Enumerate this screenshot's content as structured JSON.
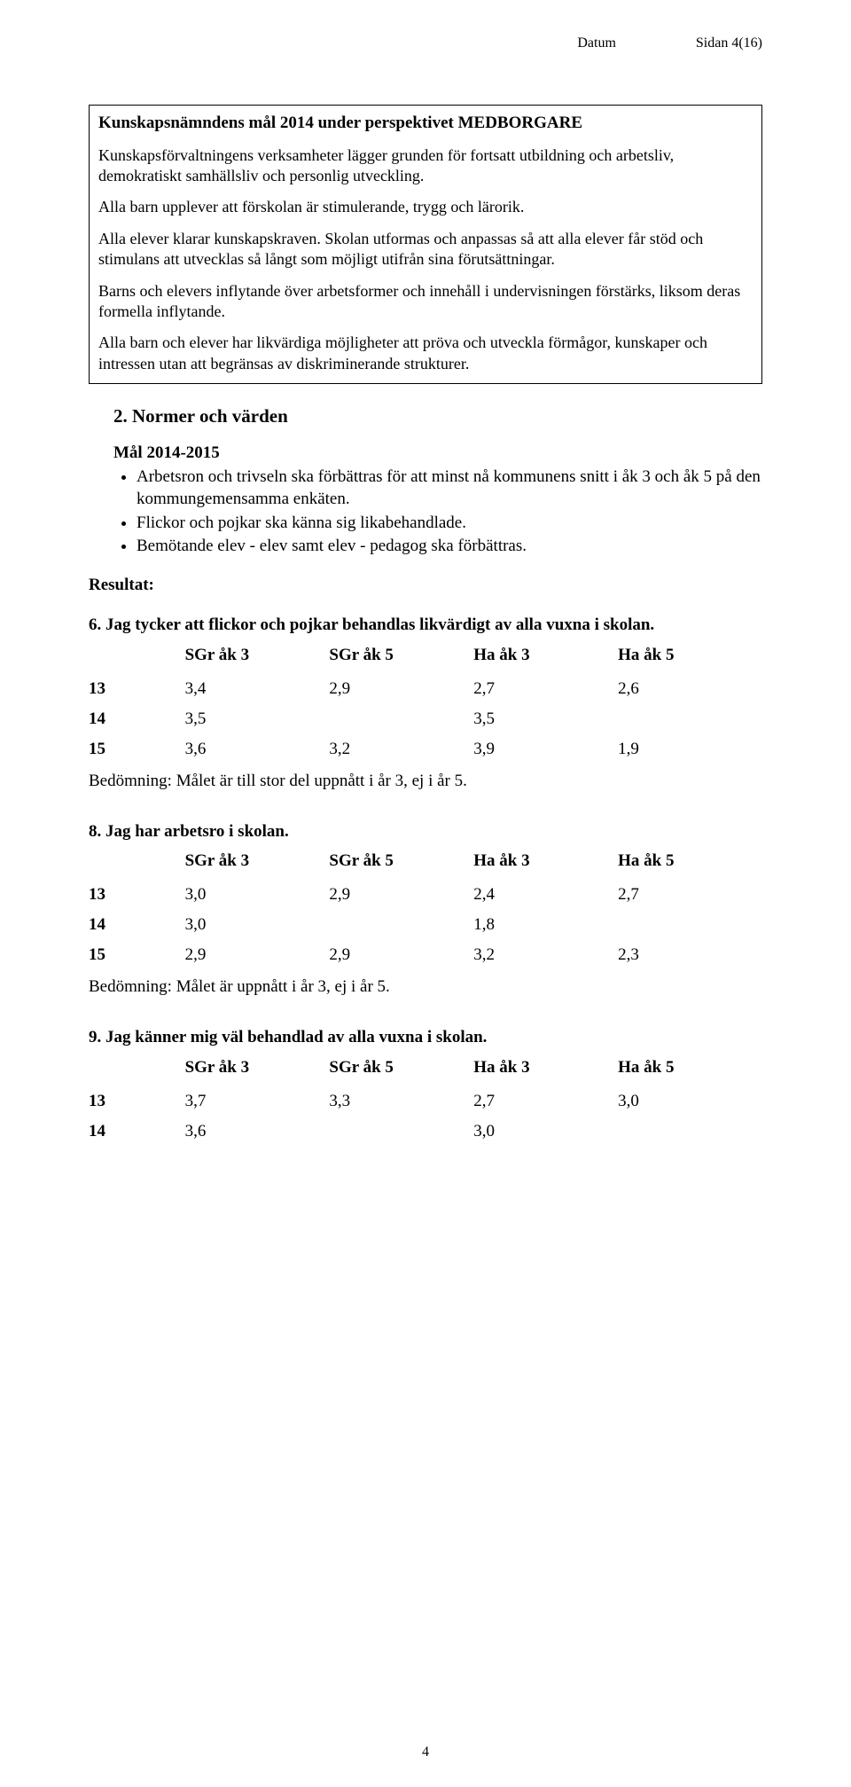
{
  "header": {
    "datum_label": "Datum",
    "page_label": "Sidan 4(16)"
  },
  "box": {
    "title": "Kunskapsnämndens mål 2014 under perspektivet MEDBORGARE",
    "p1": "Kunskapsförvaltningens verksamheter lägger grunden för fortsatt utbildning och arbetsliv, demokratiskt samhällsliv och personlig utveckling.",
    "p2": "Alla barn upplever att förskolan är stimulerande, trygg och lärorik.",
    "p3": "Alla elever klarar kunskapskraven. Skolan utformas och anpassas så att alla elever får stöd och stimulans att utvecklas så långt som möjligt utifrån sina förutsättningar.",
    "p4": "Barns och elevers inflytande över arbetsformer och innehåll i undervisningen förstärks, liksom deras formella inflytande.",
    "p5": "Alla barn och elever har likvärdiga möjligheter att pröva och utveckla förmågor, kunskaper och intressen utan att begränsas av diskriminerande strukturer."
  },
  "section": {
    "heading": "2. Normer och värden",
    "mal_heading": "Mål 2014-2015",
    "bullets": [
      "Arbetsron och trivseln ska förbättras för att minst nå kommunens snitt i åk 3 och åk 5 på den kommungemensamma enkäten.",
      "Flickor och pojkar ska känna sig likabehandlade.",
      "Bemötande elev - elev samt elev - pedagog ska förbättras."
    ],
    "resultat_label": "Resultat:"
  },
  "columns": {
    "c1": "SGr åk 3",
    "c2": "SGr åk 5",
    "c3": "Ha åk 3",
    "c4": "Ha åk 5"
  },
  "q6": {
    "title": "6. Jag tycker att flickor och pojkar behandlas likvärdigt av alla vuxna i skolan.",
    "rows": [
      {
        "year": "13",
        "v1": "3,4",
        "v2": "2,9",
        "v3": "2,7",
        "v4": "2,6"
      },
      {
        "year": "14",
        "v1": "3,5",
        "v2": "",
        "v3": "3,5",
        "v4": ""
      },
      {
        "year": "15",
        "v1": "3,6",
        "v2": "3,2",
        "v3": "3,9",
        "v4": "1,9"
      }
    ],
    "assessment": "Bedömning: Målet är till stor del uppnått i år 3, ej i år 5."
  },
  "q8": {
    "title": "8. Jag har arbetsro i skolan.",
    "rows": [
      {
        "year": "13",
        "v1": "3,0",
        "v2": "2,9",
        "v3": "2,4",
        "v4": "2,7"
      },
      {
        "year": "14",
        "v1": "3,0",
        "v2": "",
        "v3": "1,8",
        "v4": ""
      },
      {
        "year": "15",
        "v1": "2,9",
        "v2": "2,9",
        "v3": "3,2",
        "v4": "2,3"
      }
    ],
    "assessment": "Bedömning: Målet är uppnått i år 3, ej i år 5."
  },
  "q9": {
    "title": "9. Jag känner mig väl behandlad av alla vuxna i skolan.",
    "rows": [
      {
        "year": "13",
        "v1": "3,7",
        "v2": "3,3",
        "v3": "2,7",
        "v4": "3,0"
      },
      {
        "year": "14",
        "v1": "3,6",
        "v2": "",
        "v3": "3,0",
        "v4": ""
      }
    ]
  },
  "footer": {
    "page_number": "4"
  }
}
